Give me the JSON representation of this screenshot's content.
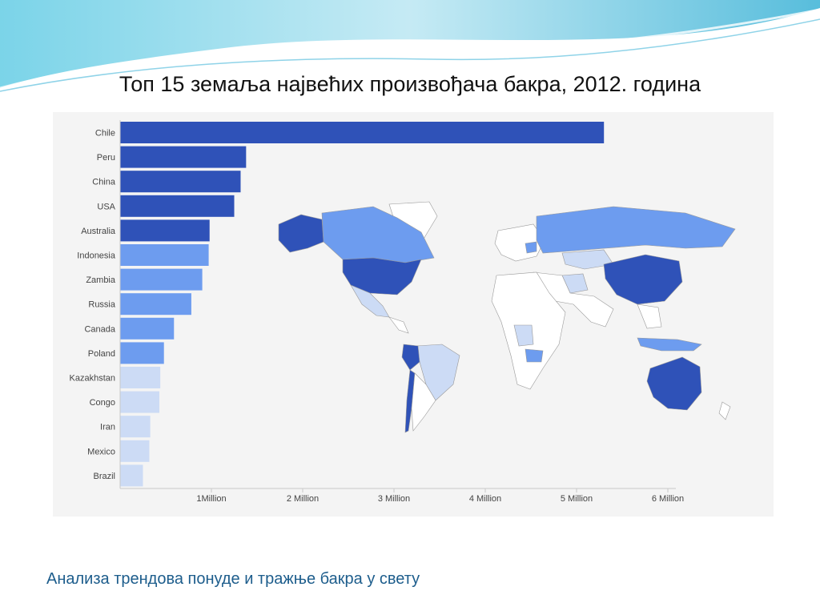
{
  "slide": {
    "title": "Топ 15 земаља највећих произвођача бакра, 2012. година",
    "footer": "Анализа трендова понуде и тражње бакра у свету"
  },
  "colors": {
    "tier1": "#2f52b8",
    "tier2": "#6d9cef",
    "tier3": "#ccdbf5",
    "land": "#ffffff",
    "ocean": "#f4f4f4",
    "accent": "#1d5d8c"
  },
  "chart_data": {
    "type": "bar",
    "orientation": "horizontal",
    "categories": [
      "Chile",
      "Peru",
      "China",
      "USA",
      "Australia",
      "Indonesia",
      "Zambia",
      "Russia",
      "Canada",
      "Poland",
      "Kazakhstan",
      "Congo",
      "Iran",
      "Mexico",
      "Brazil"
    ],
    "values": [
      5.3,
      1.38,
      1.32,
      1.25,
      0.98,
      0.97,
      0.9,
      0.78,
      0.59,
      0.48,
      0.44,
      0.43,
      0.33,
      0.32,
      0.25
    ],
    "tiers": [
      1,
      1,
      1,
      1,
      1,
      2,
      2,
      2,
      2,
      2,
      3,
      3,
      3,
      3,
      3
    ],
    "unit": "Million (tonnes)",
    "xticks": [
      {
        "value": 1,
        "label": "1Million"
      },
      {
        "value": 2,
        "label": "2 Million"
      },
      {
        "value": 3,
        "label": "3 Million"
      },
      {
        "value": 4,
        "label": "4 Million"
      },
      {
        "value": 5,
        "label": "5 Million"
      },
      {
        "value": 6,
        "label": "6 Million"
      }
    ],
    "xlim": [
      0,
      6
    ],
    "grid": false,
    "inset": "world choropleth map shaded by the same three tiers"
  }
}
